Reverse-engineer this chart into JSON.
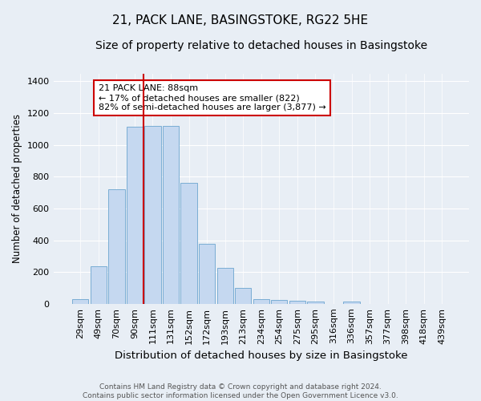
{
  "title": "21, PACK LANE, BASINGSTOKE, RG22 5HE",
  "subtitle": "Size of property relative to detached houses in Basingstoke",
  "xlabel": "Distribution of detached houses by size in Basingstoke",
  "ylabel": "Number of detached properties",
  "categories": [
    "29sqm",
    "49sqm",
    "70sqm",
    "90sqm",
    "111sqm",
    "131sqm",
    "152sqm",
    "172sqm",
    "193sqm",
    "213sqm",
    "234sqm",
    "254sqm",
    "275sqm",
    "295sqm",
    "316sqm",
    "336sqm",
    "357sqm",
    "377sqm",
    "398sqm",
    "418sqm",
    "439sqm"
  ],
  "values": [
    30,
    235,
    720,
    1115,
    1120,
    1120,
    760,
    380,
    225,
    100,
    30,
    25,
    20,
    16,
    0,
    12,
    0,
    0,
    0,
    0,
    0
  ],
  "bar_color": "#c5d8f0",
  "bar_edge_color": "#7aadd4",
  "vline_color": "#cc0000",
  "vline_x_index": 3.5,
  "annotation_text": "21 PACK LANE: 88sqm\n← 17% of detached houses are smaller (822)\n82% of semi-detached houses are larger (3,877) →",
  "annotation_box_color": "#ffffff",
  "annotation_box_edge": "#cc0000",
  "ylim": [
    0,
    1450
  ],
  "yticks": [
    0,
    200,
    400,
    600,
    800,
    1000,
    1200,
    1400
  ],
  "bg_color": "#e8eef5",
  "plot_bg_color": "#e8eef5",
  "footer": "Contains HM Land Registry data © Crown copyright and database right 2024.\nContains public sector information licensed under the Open Government Licence v3.0.",
  "title_fontsize": 11,
  "subtitle_fontsize": 10,
  "xlabel_fontsize": 9.5,
  "ylabel_fontsize": 8.5,
  "tick_fontsize": 8,
  "annotation_fontsize": 8,
  "footer_fontsize": 6.5
}
